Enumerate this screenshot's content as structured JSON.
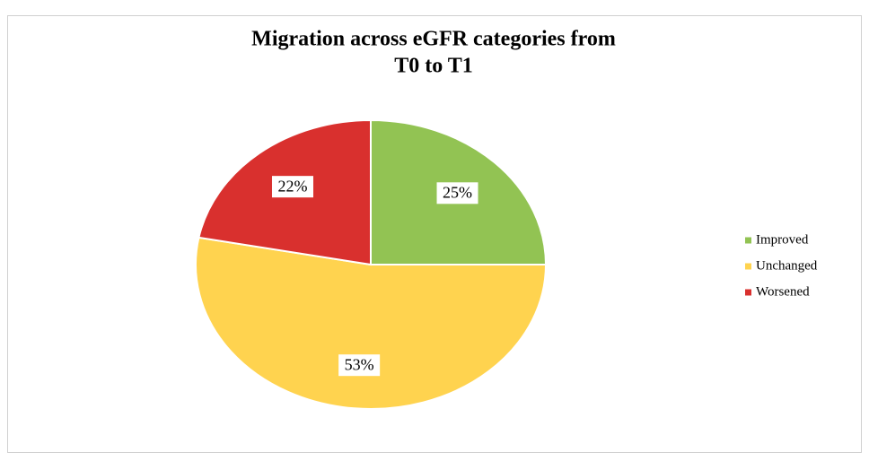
{
  "chart_data": {
    "type": "pie",
    "title": [
      "Migration across eGFR categories from",
      "T0 to T1"
    ],
    "categories": [
      "Improved",
      "Unchanged",
      "Worsened"
    ],
    "values": [
      25,
      53,
      22
    ],
    "value_labels": [
      "25%",
      "53%",
      "22%"
    ],
    "colors": [
      "#92c353",
      "#ffd34f",
      "#d9302e"
    ],
    "legend": "right"
  }
}
